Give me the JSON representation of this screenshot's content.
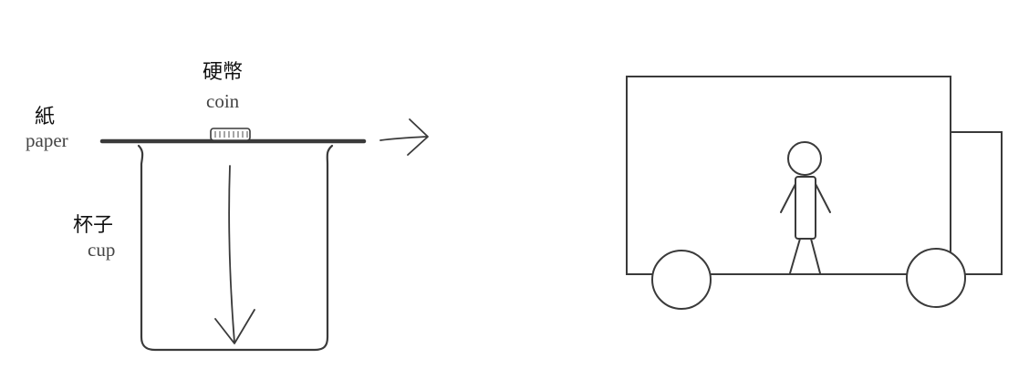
{
  "left_figure": {
    "coin": {
      "label_zh": "硬幣",
      "label_en": "coin"
    },
    "paper": {
      "label_zh": "紙",
      "label_en": "paper"
    },
    "cup": {
      "label_zh": "杯子",
      "label_en": "cup"
    }
  },
  "right_figure": {}
}
